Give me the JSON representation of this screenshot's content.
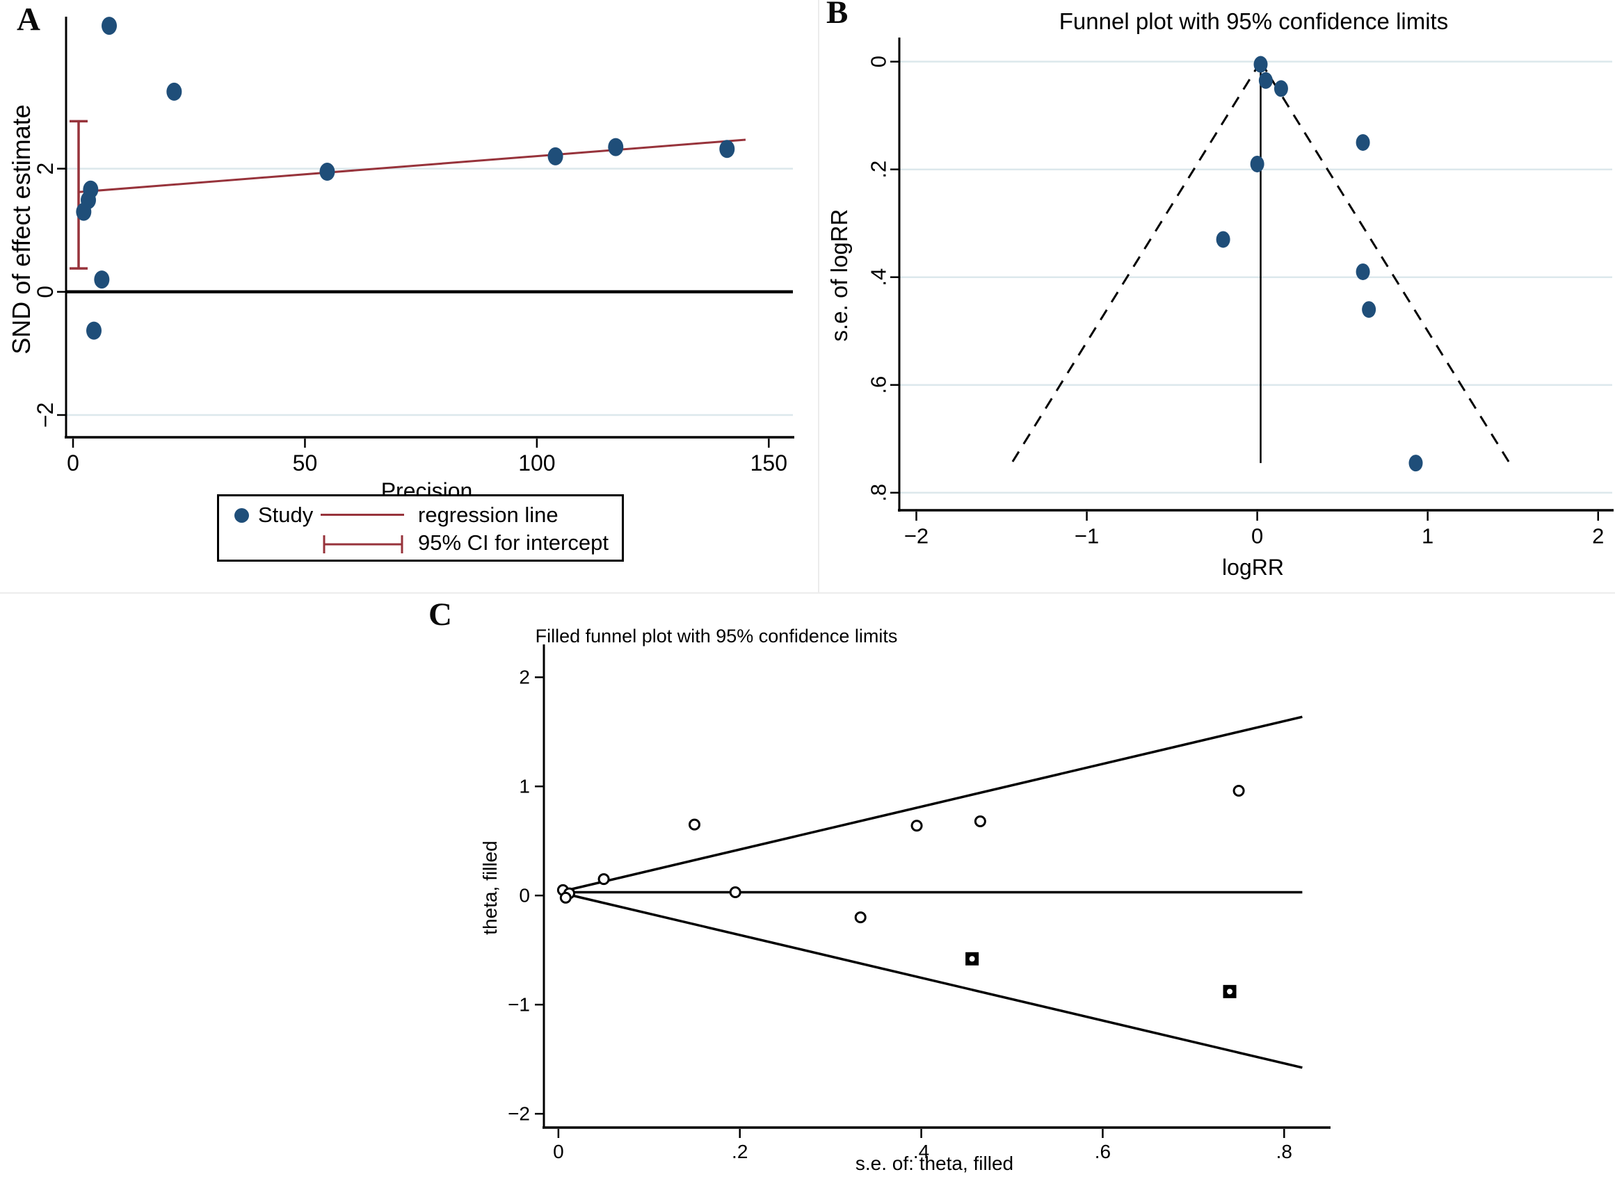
{
  "colors": {
    "navy": "#1f4e79",
    "maroon": "#97333b",
    "grid": "#dce8ec",
    "axis": "#000000",
    "separator": "#ececec",
    "background": "#ffffff"
  },
  "chart_data": [
    {
      "type": "scatter",
      "panel_label": "A",
      "title": "",
      "xlabel": "Precision",
      "ylabel": "SND of effect estimate",
      "xlim": [
        -1.5,
        154
      ],
      "ylim": [
        -2.35,
        4.4
      ],
      "xticks": [
        {
          "v": 0,
          "label": "0"
        },
        {
          "v": 50,
          "label": "50"
        },
        {
          "v": 100,
          "label": "100"
        },
        {
          "v": 150,
          "label": "150"
        }
      ],
      "yticks": [
        {
          "v": -2,
          "label": "−2"
        },
        {
          "v": 0,
          "label": "0"
        },
        {
          "v": 2,
          "label": "2"
        }
      ],
      "grid_y": [
        -2,
        2
      ],
      "zero_refline_y": 0,
      "study_points": [
        [
          7.8,
          4.32
        ],
        [
          21.8,
          3.25
        ],
        [
          3.8,
          1.66
        ],
        [
          3.3,
          1.49
        ],
        [
          2.3,
          1.3
        ],
        [
          6.2,
          0.2
        ],
        [
          4.5,
          -0.63
        ],
        [
          54.8,
          1.95
        ],
        [
          104,
          2.2
        ],
        [
          117,
          2.35
        ],
        [
          141,
          2.32
        ]
      ],
      "regression_line": {
        "x1": 1.2,
        "y1": 1.62,
        "x2": 145,
        "y2": 2.47
      },
      "ci_intercept_bar": {
        "x": 1.2,
        "y_low": 0.38,
        "y_high": 2.77
      },
      "legend_items": [
        "Study",
        "regression line",
        "95% CI for intercept"
      ]
    },
    {
      "type": "scatter",
      "panel_label": "B",
      "title": "Funnel plot with 95% confidence limits",
      "xlabel": "logRR",
      "ylabel": "s.e. of logRR",
      "xlim": [
        -2.1,
        2.05
      ],
      "ylim_se": [
        -0.037,
        0.83
      ],
      "xticks": [
        {
          "v": -2,
          "label": "−2"
        },
        {
          "v": -1,
          "label": "−1"
        },
        {
          "v": 0,
          "label": "0"
        },
        {
          "v": 1,
          "label": "1"
        },
        {
          "v": 2,
          "label": "2"
        }
      ],
      "yticks": [
        {
          "v": 0,
          "label": "0"
        },
        {
          "v": 0.2,
          "label": ".2"
        },
        {
          "v": 0.4,
          "label": ".4"
        },
        {
          "v": 0.6,
          "label": ".6"
        },
        {
          "v": 0.8,
          "label": ".8"
        }
      ],
      "grid_se": [
        0,
        0.2,
        0.4,
        0.6,
        0.8
      ],
      "study_points": [
        [
          0.02,
          0.005
        ],
        [
          0.05,
          0.035
        ],
        [
          0.14,
          0.05
        ],
        [
          0.62,
          0.15
        ],
        [
          0.0,
          0.19
        ],
        [
          -0.2,
          0.33
        ],
        [
          0.62,
          0.39
        ],
        [
          0.655,
          0.46
        ],
        [
          0.93,
          0.745
        ]
      ],
      "funnel": {
        "center_x": 0.02,
        "se_max": 0.745,
        "multiplier": 1.96,
        "style": "dashed"
      },
      "pooled_effect_line": {
        "x": 0.02,
        "se_from": 0,
        "se_to": 0.745
      }
    },
    {
      "type": "scatter",
      "panel_label": "C",
      "title": "Filled funnel plot with 95% confidence limits",
      "xlabel": "s.e. of: theta, filled",
      "ylabel": "theta, filled",
      "xlim_se": [
        -0.016,
        0.845
      ],
      "ylim": [
        -2.12,
        2.25
      ],
      "xticks": [
        {
          "v": 0,
          "label": "0"
        },
        {
          "v": 0.2,
          "label": ".2"
        },
        {
          "v": 0.4,
          "label": ".4"
        },
        {
          "v": 0.6,
          "label": ".6"
        },
        {
          "v": 0.8,
          "label": ".8"
        }
      ],
      "yticks": [
        {
          "v": 2,
          "label": "2"
        },
        {
          "v": 1,
          "label": "1"
        },
        {
          "v": 0,
          "label": "0"
        },
        {
          "v": -1,
          "label": "−1"
        },
        {
          "v": -2,
          "label": "−2"
        }
      ],
      "observed_points": [
        [
          0.005,
          0.05
        ],
        [
          0.012,
          0.02
        ],
        [
          0.008,
          -0.02
        ],
        [
          0.05,
          0.15
        ],
        [
          0.15,
          0.65
        ],
        [
          0.195,
          0.03
        ],
        [
          0.333,
          -0.2
        ],
        [
          0.395,
          0.64
        ],
        [
          0.465,
          0.68
        ],
        [
          0.75,
          0.96
        ]
      ],
      "filled_points": [
        [
          0.456,
          -0.58
        ],
        [
          0.74,
          -0.88
        ]
      ],
      "funnel": {
        "center_theta": 0.03,
        "se_max": 0.82,
        "multiplier": 1.96,
        "style": "solid"
      }
    }
  ]
}
